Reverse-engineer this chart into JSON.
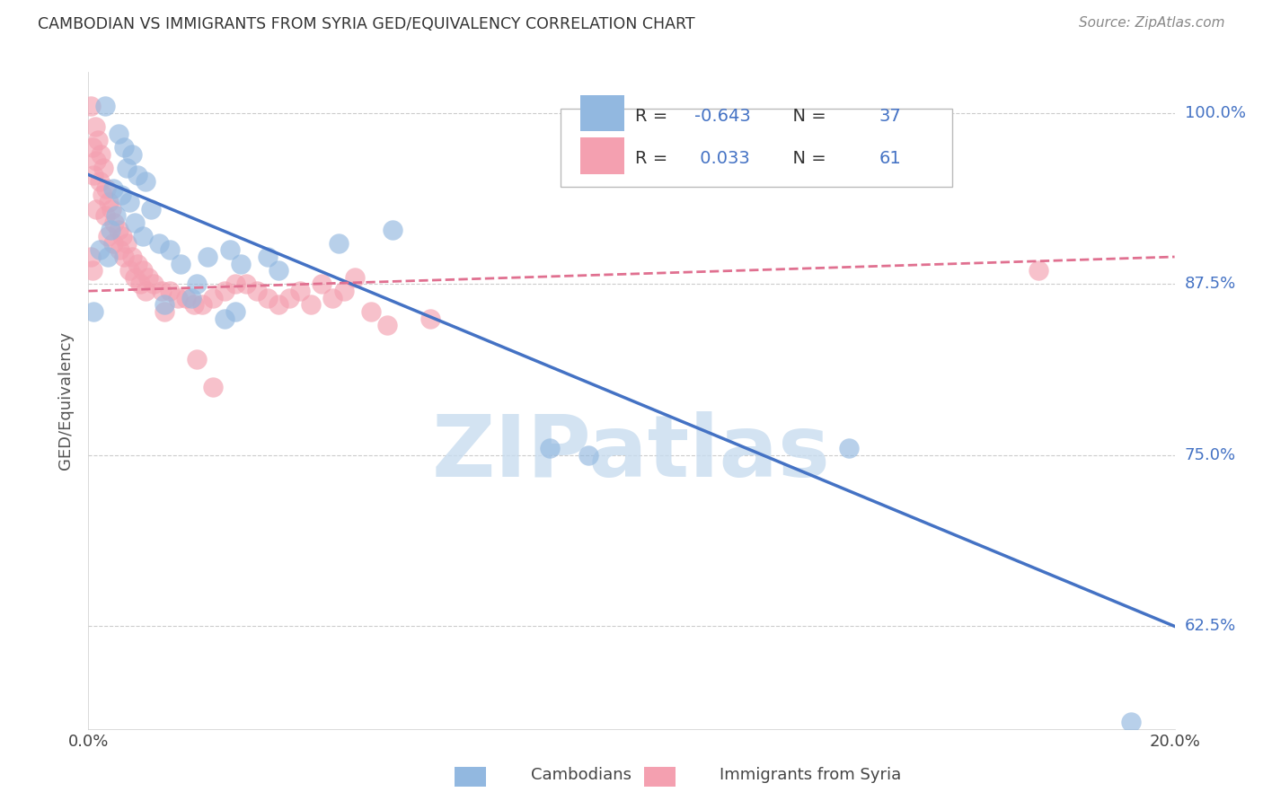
{
  "title": "CAMBODIAN VS IMMIGRANTS FROM SYRIA GED/EQUIVALENCY CORRELATION CHART",
  "source": "Source: ZipAtlas.com",
  "ylabel": "GED/Equivalency",
  "yticks": [
    62.5,
    75.0,
    87.5,
    100.0
  ],
  "ytick_labels": [
    "62.5%",
    "75.0%",
    "87.5%",
    "100.0%"
  ],
  "xmin": 0.0,
  "xmax": 20.0,
  "ymin": 55.0,
  "ymax": 103.0,
  "legend_R_cambodian": "-0.643",
  "legend_N_cambodian": "37",
  "legend_R_syria": "0.033",
  "legend_N_syria": "61",
  "blue_color": "#92B8E0",
  "pink_color": "#F4A0B0",
  "blue_line_color": "#4472C4",
  "pink_line_color": "#E07090",
  "blue_scatter": [
    [
      0.3,
      100.5
    ],
    [
      0.55,
      98.5
    ],
    [
      0.65,
      97.5
    ],
    [
      0.8,
      97.0
    ],
    [
      0.7,
      96.0
    ],
    [
      0.9,
      95.5
    ],
    [
      1.05,
      95.0
    ],
    [
      0.45,
      94.5
    ],
    [
      0.6,
      94.0
    ],
    [
      0.75,
      93.5
    ],
    [
      1.15,
      93.0
    ],
    [
      0.5,
      92.5
    ],
    [
      0.85,
      92.0
    ],
    [
      0.4,
      91.5
    ],
    [
      1.0,
      91.0
    ],
    [
      1.3,
      90.5
    ],
    [
      1.5,
      90.0
    ],
    [
      0.2,
      90.0
    ],
    [
      0.35,
      89.5
    ],
    [
      1.7,
      89.0
    ],
    [
      2.2,
      89.5
    ],
    [
      2.6,
      90.0
    ],
    [
      2.8,
      89.0
    ],
    [
      3.3,
      89.5
    ],
    [
      3.5,
      88.5
    ],
    [
      4.6,
      90.5
    ],
    [
      5.6,
      91.5
    ],
    [
      2.0,
      87.5
    ],
    [
      1.9,
      86.5
    ],
    [
      1.4,
      86.0
    ],
    [
      0.1,
      85.5
    ],
    [
      2.5,
      85.0
    ],
    [
      2.7,
      85.5
    ],
    [
      8.5,
      75.5
    ],
    [
      9.2,
      75.0
    ],
    [
      19.2,
      55.5
    ],
    [
      14.0,
      75.5
    ]
  ],
  "pink_scatter": [
    [
      0.05,
      100.5
    ],
    [
      0.12,
      99.0
    ],
    [
      0.18,
      98.0
    ],
    [
      0.08,
      97.5
    ],
    [
      0.22,
      97.0
    ],
    [
      0.15,
      96.5
    ],
    [
      0.28,
      96.0
    ],
    [
      0.1,
      95.5
    ],
    [
      0.2,
      95.0
    ],
    [
      0.32,
      94.5
    ],
    [
      0.25,
      94.0
    ],
    [
      0.38,
      93.5
    ],
    [
      0.14,
      93.0
    ],
    [
      0.42,
      93.0
    ],
    [
      0.3,
      92.5
    ],
    [
      0.48,
      92.0
    ],
    [
      0.55,
      91.5
    ],
    [
      0.35,
      91.0
    ],
    [
      0.62,
      91.0
    ],
    [
      0.45,
      90.5
    ],
    [
      0.7,
      90.5
    ],
    [
      0.58,
      90.0
    ],
    [
      0.8,
      89.5
    ],
    [
      0.65,
      89.5
    ],
    [
      0.9,
      89.0
    ],
    [
      0.75,
      88.5
    ],
    [
      1.0,
      88.5
    ],
    [
      0.85,
      88.0
    ],
    [
      1.1,
      88.0
    ],
    [
      0.95,
      87.5
    ],
    [
      1.2,
      87.5
    ],
    [
      1.05,
      87.0
    ],
    [
      1.35,
      87.0
    ],
    [
      1.5,
      87.0
    ],
    [
      1.65,
      86.5
    ],
    [
      1.8,
      86.5
    ],
    [
      1.95,
      86.0
    ],
    [
      2.1,
      86.0
    ],
    [
      2.3,
      86.5
    ],
    [
      2.5,
      87.0
    ],
    [
      2.7,
      87.5
    ],
    [
      2.9,
      87.5
    ],
    [
      3.1,
      87.0
    ],
    [
      3.3,
      86.5
    ],
    [
      3.5,
      86.0
    ],
    [
      3.7,
      86.5
    ],
    [
      3.9,
      87.0
    ],
    [
      4.1,
      86.0
    ],
    [
      4.3,
      87.5
    ],
    [
      4.5,
      86.5
    ],
    [
      4.7,
      87.0
    ],
    [
      4.9,
      88.0
    ],
    [
      5.2,
      85.5
    ],
    [
      5.5,
      84.5
    ],
    [
      6.3,
      85.0
    ],
    [
      0.05,
      89.5
    ],
    [
      0.08,
      88.5
    ],
    [
      1.4,
      85.5
    ],
    [
      2.0,
      82.0
    ],
    [
      2.3,
      80.0
    ],
    [
      17.5,
      88.5
    ]
  ],
  "blue_line_x": [
    0.0,
    20.0
  ],
  "blue_line_y": [
    95.5,
    62.5
  ],
  "pink_line_x": [
    0.0,
    20.0
  ],
  "pink_line_y": [
    87.0,
    89.5
  ],
  "watermark": "ZIPatlas",
  "background_color": "#ffffff",
  "grid_color": "#cccccc"
}
